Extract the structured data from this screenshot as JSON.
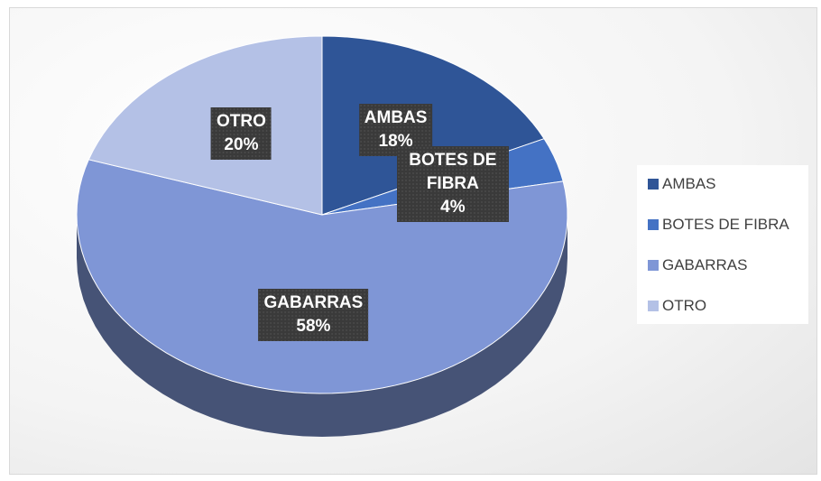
{
  "chart_data": {
    "type": "pie",
    "categories": [
      "AMBAS",
      "BOTES DE FIBRA",
      "GABARRAS",
      "OTRO"
    ],
    "values": [
      18,
      4,
      58,
      20
    ],
    "value_labels": [
      "18%",
      "4%",
      "58%",
      "20%"
    ],
    "colors": [
      "#2f5597",
      "#4472c4",
      "#7f96d6",
      "#b4c1e6"
    ],
    "legend": "right"
  }
}
